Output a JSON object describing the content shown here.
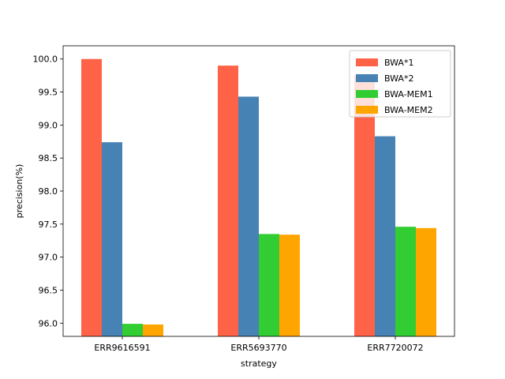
{
  "chart_data": {
    "type": "bar",
    "title": "",
    "xlabel": "strategy",
    "ylabel": "precision(%)",
    "categories": [
      "ERR9616591",
      "ERR5693770",
      "ERR7720072"
    ],
    "ylim": [
      95.8,
      100.2
    ],
    "yticks": [
      "96.0",
      "96.5",
      "97.0",
      "97.5",
      "98.0",
      "98.5",
      "99.0",
      "99.5",
      "100.0"
    ],
    "series": [
      {
        "name": "BWA*1",
        "color": "#ff6347",
        "values": [
          100.0,
          99.9,
          99.75
        ]
      },
      {
        "name": "BWA*2",
        "color": "#4682b4",
        "values": [
          98.74,
          99.43,
          98.83
        ]
      },
      {
        "name": "BWA-MEM1",
        "color": "#32cd32",
        "values": [
          95.99,
          97.35,
          97.46
        ]
      },
      {
        "name": "BWA-MEM2",
        "color": "#ffa500",
        "values": [
          95.98,
          97.34,
          97.44
        ]
      }
    ],
    "legend_position": "top-right",
    "grid": false
  }
}
